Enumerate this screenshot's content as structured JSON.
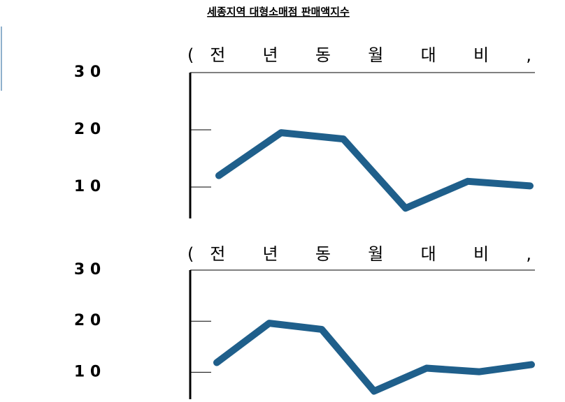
{
  "header": {
    "title": "세종지역 대형소매점 판매액지수"
  },
  "chart_data": [
    {
      "type": "line",
      "subtitle": "(전 년 동 월 대 비 ,",
      "series": [
        {
          "color": "#1f5f8b",
          "values": [
            12,
            19.5,
            18.4,
            6.3,
            11,
            10.2
          ]
        }
      ],
      "ylim": [
        5,
        30
      ],
      "yticks": [
        {
          "value": 10,
          "label": "1 0"
        },
        {
          "value": 20,
          "label": "2 0"
        },
        {
          "value": 30,
          "label": "3 0"
        }
      ]
    },
    {
      "type": "line",
      "subtitle": "(전 년 동 월 대 비 ,",
      "series": [
        {
          "color": "#1f5f8b",
          "values": [
            11.9,
            19.6,
            18.4,
            6.3,
            10.8,
            10.1,
            11.5
          ]
        }
      ],
      "ylim": [
        5,
        30
      ],
      "yticks": [
        {
          "value": 10,
          "label": "1 0"
        },
        {
          "value": 20,
          "label": "2 0"
        },
        {
          "value": 30,
          "label": "3 0"
        }
      ]
    }
  ]
}
